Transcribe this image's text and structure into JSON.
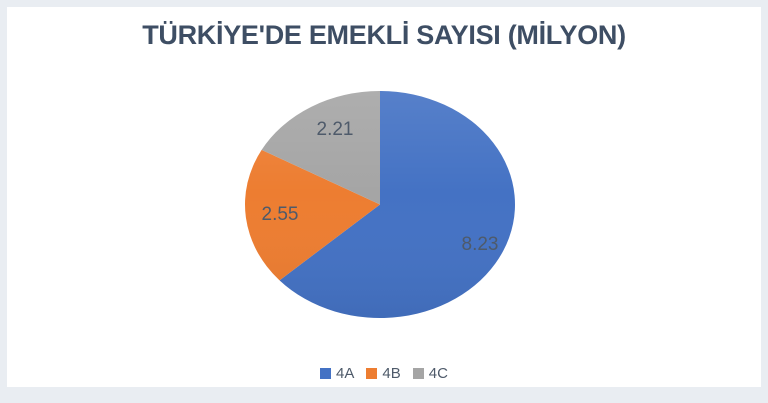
{
  "page": {
    "background_color": "#e9edf2",
    "card_color": "#ffffff"
  },
  "chart_data": {
    "type": "pie",
    "title": "TÜRKİYE'DE EMEKLİ SAYISI (MİLYON)",
    "categories": [
      "4A",
      "4B",
      "4C"
    ],
    "values": [
      8.23,
      2.55,
      2.21
    ],
    "value_labels": [
      "8.23",
      "2.55",
      "2.21"
    ],
    "colors": [
      "#4472C4",
      "#ED7D31",
      "#A5A5A5"
    ],
    "title_color": "#3e4e64",
    "label_color": "#4e5a6a",
    "legend_position": "bottom",
    "start_angle_deg": 0,
    "direction": "clockwise",
    "labels_inside": true,
    "axes": "none",
    "grid": false
  }
}
